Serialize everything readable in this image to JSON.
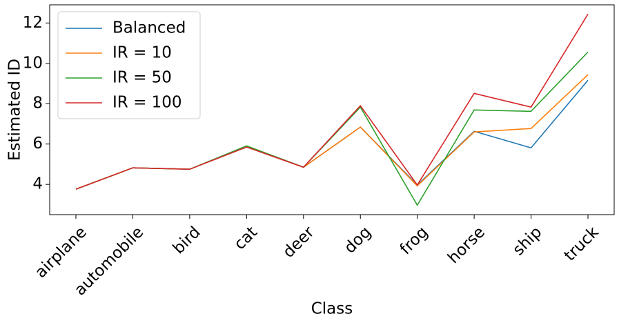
{
  "chart_data": {
    "type": "line",
    "x_label": "Class",
    "y_label": "Estimated ID",
    "categories": [
      "airplane",
      "automobile",
      "bird",
      "cat",
      "deer",
      "dog",
      "frog",
      "horse",
      "ship",
      "truck"
    ],
    "series": [
      {
        "name": "Balanced",
        "color": "#1f77b4",
        "values": [
          3.76,
          4.82,
          4.75,
          5.88,
          4.85,
          6.84,
          3.97,
          6.63,
          5.81,
          9.16
        ]
      },
      {
        "name": "IR = 10",
        "color": "#ff7f0e",
        "values": [
          3.76,
          4.82,
          4.75,
          5.88,
          4.85,
          6.84,
          3.93,
          6.6,
          6.77,
          9.44
        ]
      },
      {
        "name": "IR = 50",
        "color": "#2ca02c",
        "values": [
          3.76,
          4.82,
          4.75,
          5.91,
          4.85,
          7.83,
          2.97,
          7.69,
          7.62,
          10.56
        ]
      },
      {
        "name": "IR = 100",
        "color": "#d62728",
        "values": [
          3.76,
          4.82,
          4.75,
          5.85,
          4.85,
          7.9,
          3.97,
          8.51,
          7.83,
          12.44
        ]
      }
    ],
    "ylim": [
      2.5,
      12.9
    ],
    "yticks": [
      4,
      6,
      8,
      10,
      12
    ],
    "legend": "upper left"
  }
}
